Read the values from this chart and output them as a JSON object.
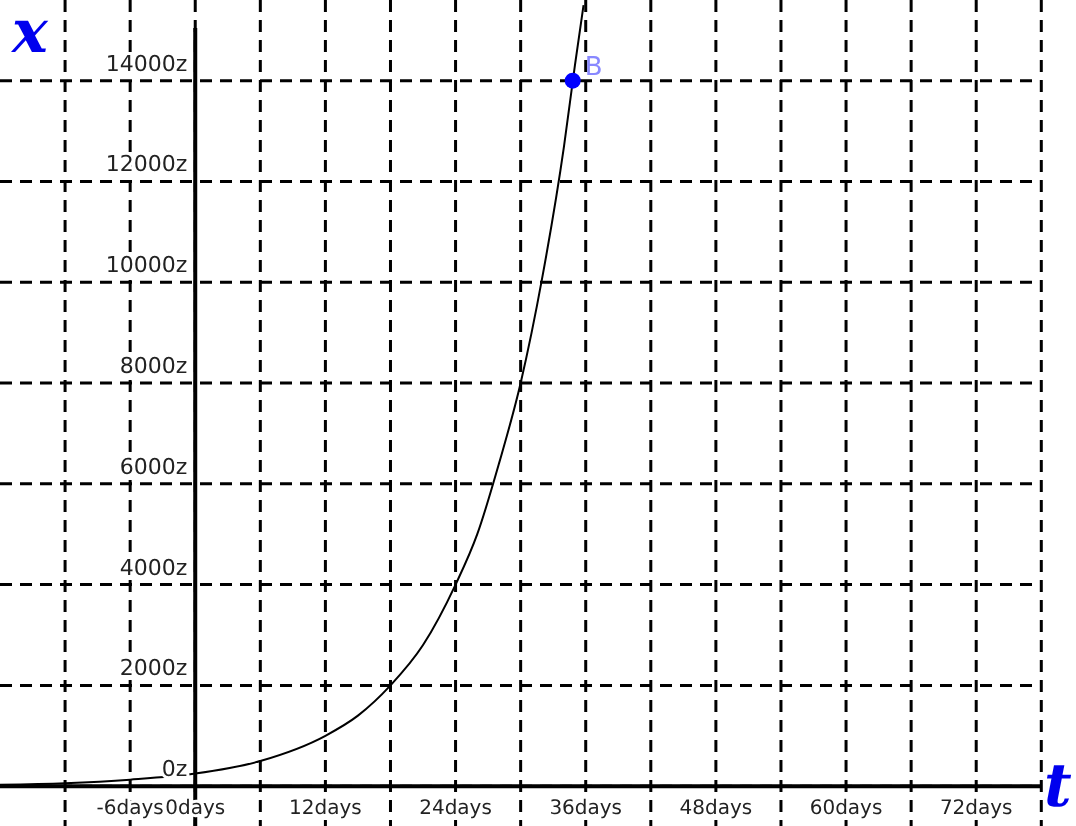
{
  "chart_data": {
    "type": "line",
    "xlabel": "t",
    "ylabel": "x",
    "xlim": [
      -18,
      81.2
    ],
    "ylim": [
      -790,
      15600
    ],
    "xticks": [
      {
        "value": -12,
        "label": null
      },
      {
        "value": -6,
        "label": "-6days"
      },
      {
        "value": 0,
        "label": "0days"
      },
      {
        "value": 6,
        "label": null
      },
      {
        "value": 12,
        "label": "12days"
      },
      {
        "value": 18,
        "label": null
      },
      {
        "value": 24,
        "label": "24days"
      },
      {
        "value": 30,
        "label": null
      },
      {
        "value": 36,
        "label": "36days"
      },
      {
        "value": 42,
        "label": null
      },
      {
        "value": 48,
        "label": "48days"
      },
      {
        "value": 54,
        "label": null
      },
      {
        "value": 60,
        "label": "60days"
      },
      {
        "value": 66,
        "label": null
      },
      {
        "value": 72,
        "label": "72days"
      },
      {
        "value": 78,
        "label": null
      }
    ],
    "yticks": [
      {
        "value": 0,
        "label": "0z"
      },
      {
        "value": 2000,
        "label": "2000z"
      },
      {
        "value": 4000,
        "label": "4000z"
      },
      {
        "value": 6000,
        "label": "6000z"
      },
      {
        "value": 8000,
        "label": "8000z"
      },
      {
        "value": 10000,
        "label": "10000z"
      },
      {
        "value": 12000,
        "label": "12000z"
      },
      {
        "value": 14000,
        "label": "14000z"
      }
    ],
    "grid": true,
    "series": [
      {
        "color": "#000000",
        "x": [
          -18,
          -12,
          -6,
          0,
          6,
          12,
          15,
          18,
          21,
          24,
          26,
          28,
          30,
          32,
          34,
          35,
          35.8
        ],
        "values": [
          30,
          60,
          130,
          250,
          500,
          1000,
          1400,
          2000,
          2800,
          4000,
          5000,
          6400,
          8000,
          10100,
          12700,
          14300,
          15500
        ]
      },
      {
        "type": "scatter",
        "name": "B",
        "color": "#0000ff",
        "marker": "circle",
        "x": [
          34.8
        ],
        "values": [
          14000
        ]
      }
    ]
  }
}
